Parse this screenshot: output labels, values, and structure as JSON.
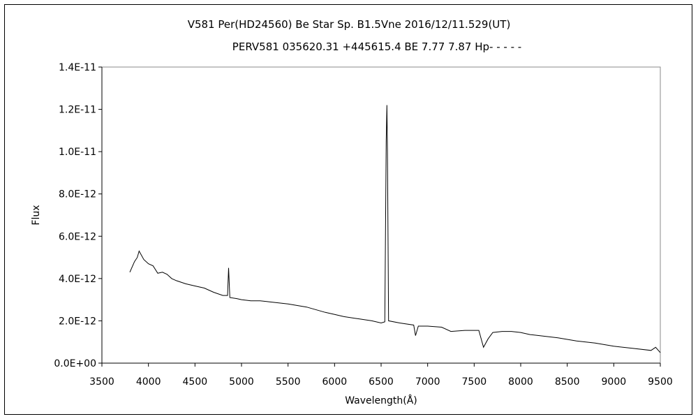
{
  "chart_data": {
    "type": "line",
    "title": "V581 Per(HD24560)    Be Star    Sp. B1.5Vne    2016/12/11.529(UT)",
    "subtitle": "PERV581 035620.31 +445615.4 BE 7.77 7.87 Hp- - - - -",
    "xlabel": "Wavelength(Å)",
    "ylabel": "Flux",
    "xlim": [
      3500,
      9500
    ],
    "ylim": [
      0,
      1.4e-11
    ],
    "x_ticks": [
      "3500",
      "4000",
      "4500",
      "5000",
      "5500",
      "6000",
      "6500",
      "7000",
      "7500",
      "8000",
      "8500",
      "9000",
      "9500"
    ],
    "y_ticks": [
      "0.0E+00",
      "2.0E-12",
      "4.0E-12",
      "6.0E-12",
      "8.0E-12",
      "1.0E-11",
      "1.2E-11",
      "1.4E-11"
    ],
    "grid": false,
    "line_color": "#000000",
    "series": [
      {
        "points": [
          [
            3800,
            4.3e-12
          ],
          [
            3850,
            4.8e-12
          ],
          [
            3880,
            5e-12
          ],
          [
            3900,
            5.3e-12
          ],
          [
            3950,
            4.9e-12
          ],
          [
            4000,
            4.7e-12
          ],
          [
            4050,
            4.6e-12
          ],
          [
            4100,
            4.25e-12
          ],
          [
            4150,
            4.3e-12
          ],
          [
            4200,
            4.2e-12
          ],
          [
            4250,
            4e-12
          ],
          [
            4300,
            3.9e-12
          ],
          [
            4400,
            3.75e-12
          ],
          [
            4500,
            3.65e-12
          ],
          [
            4600,
            3.55e-12
          ],
          [
            4700,
            3.35e-12
          ],
          [
            4800,
            3.2e-12
          ],
          [
            4850,
            3.2e-12
          ],
          [
            4861,
            4.5e-12
          ],
          [
            4875,
            3.1e-12
          ],
          [
            4950,
            3.05e-12
          ],
          [
            5000,
            3e-12
          ],
          [
            5100,
            2.95e-12
          ],
          [
            5200,
            2.95e-12
          ],
          [
            5300,
            2.9e-12
          ],
          [
            5500,
            2.8e-12
          ],
          [
            5700,
            2.65e-12
          ],
          [
            5900,
            2.4e-12
          ],
          [
            6000,
            2.3e-12
          ],
          [
            6100,
            2.2e-12
          ],
          [
            6250,
            2.1e-12
          ],
          [
            6400,
            2e-12
          ],
          [
            6500,
            1.9e-12
          ],
          [
            6540,
            1.95e-12
          ],
          [
            6555,
            1.05e-11
          ],
          [
            6562,
            1.22e-11
          ],
          [
            6568,
            1e-11
          ],
          [
            6580,
            2e-12
          ],
          [
            6700,
            1.9e-12
          ],
          [
            6850,
            1.8e-12
          ],
          [
            6870,
            1.3e-12
          ],
          [
            6900,
            1.75e-12
          ],
          [
            7000,
            1.75e-12
          ],
          [
            7150,
            1.7e-12
          ],
          [
            7250,
            1.5e-12
          ],
          [
            7400,
            1.55e-12
          ],
          [
            7550,
            1.55e-12
          ],
          [
            7600,
            7.5e-13
          ],
          [
            7650,
            1.15e-12
          ],
          [
            7700,
            1.45e-12
          ],
          [
            7800,
            1.5e-12
          ],
          [
            7900,
            1.5e-12
          ],
          [
            8000,
            1.45e-12
          ],
          [
            8100,
            1.35e-12
          ],
          [
            8200,
            1.3e-12
          ],
          [
            8400,
            1.2e-12
          ],
          [
            8600,
            1.05e-12
          ],
          [
            8800,
            9.5e-13
          ],
          [
            9000,
            8e-13
          ],
          [
            9200,
            7e-13
          ],
          [
            9400,
            6e-13
          ],
          [
            9450,
            7.5e-13
          ],
          [
            9500,
            5e-13
          ]
        ]
      }
    ]
  }
}
